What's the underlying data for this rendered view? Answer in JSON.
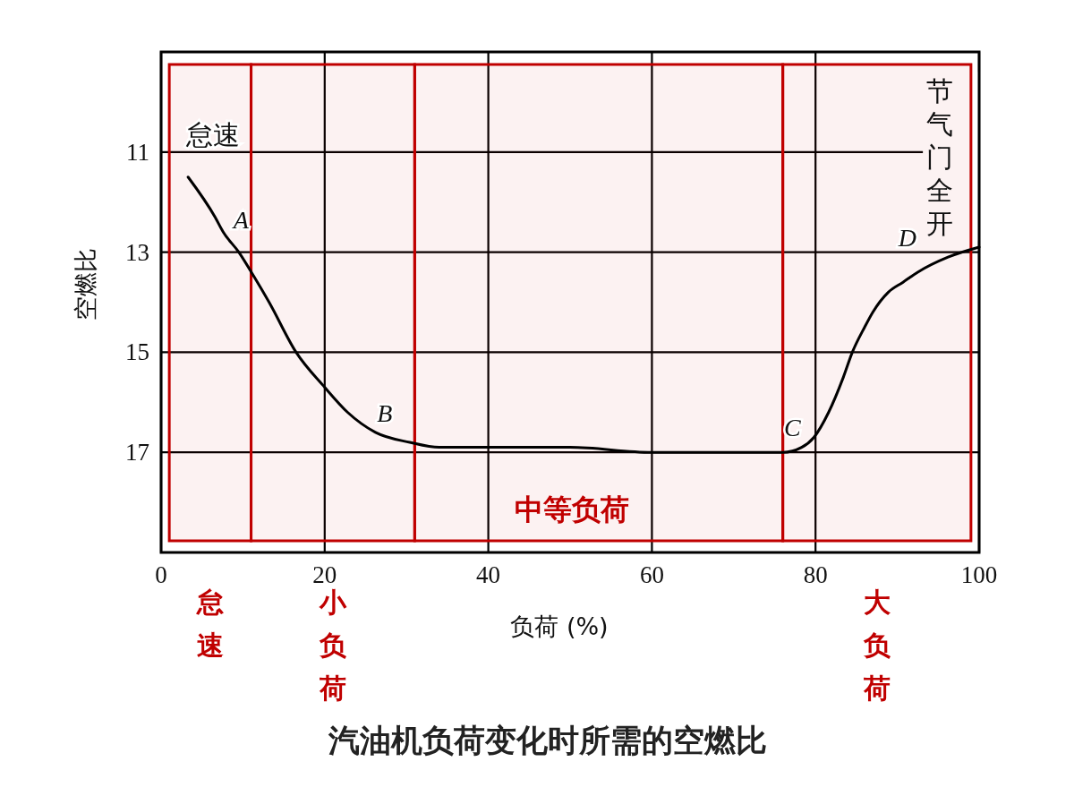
{
  "chart_data": {
    "type": "line",
    "title": "汽油机负荷变化时所需的空燃比",
    "xlabel": "负荷 (%)",
    "ylabel": "空燃比",
    "x": [
      3.3,
      6.6,
      7.6,
      9.5,
      11.4,
      13.2,
      16.5,
      20,
      22.8,
      26.2,
      30.4,
      34,
      40,
      50,
      60,
      70,
      76,
      78.3,
      79.8,
      81.6,
      83.4,
      84.5,
      86,
      87,
      88.9,
      90.7,
      92.5,
      96.2,
      100
    ],
    "series": [
      {
        "color": "#000000",
        "values": [
          11.5,
          12.3,
          12.6,
          13.0,
          13.5,
          14.0,
          15.0,
          15.7,
          16.2,
          16.6,
          16.8,
          16.9,
          16.9,
          16.9,
          17.0,
          17.0,
          17.0,
          16.9,
          16.7,
          16.2,
          15.5,
          15.0,
          14.5,
          14.2,
          13.8,
          13.6,
          13.4,
          13.1,
          12.9
        ]
      }
    ],
    "xlim": [
      0,
      100
    ],
    "ylim": [
      19,
      9
    ],
    "xticks": [
      0,
      20,
      40,
      60,
      80,
      100
    ],
    "yticks": [
      11,
      13,
      15,
      17
    ],
    "grid": true,
    "bands": [
      {
        "axis": "x",
        "from": 1,
        "to": 11,
        "label": "怠速",
        "color": "#c00000"
      },
      {
        "axis": "x",
        "from": 11,
        "to": 31,
        "label": "小负荷",
        "color": "#c00000"
      },
      {
        "axis": "x",
        "from": 31,
        "to": 76,
        "label": "中等负荷",
        "color": "#c00000"
      },
      {
        "axis": "x",
        "from": 76,
        "to": 99,
        "label": "大负荷",
        "color": "#c00000"
      }
    ],
    "annotations": [
      "怠速",
      "节气门全开",
      {
        "text": "A",
        "x": 7.6,
        "y": 12.6
      },
      {
        "text": "B",
        "x": 26.2,
        "y": 16.6
      },
      {
        "text": "C",
        "x": 78.3,
        "y": 16.9
      },
      {
        "text": "D",
        "x": 92.5,
        "y": 13.4
      }
    ]
  }
}
